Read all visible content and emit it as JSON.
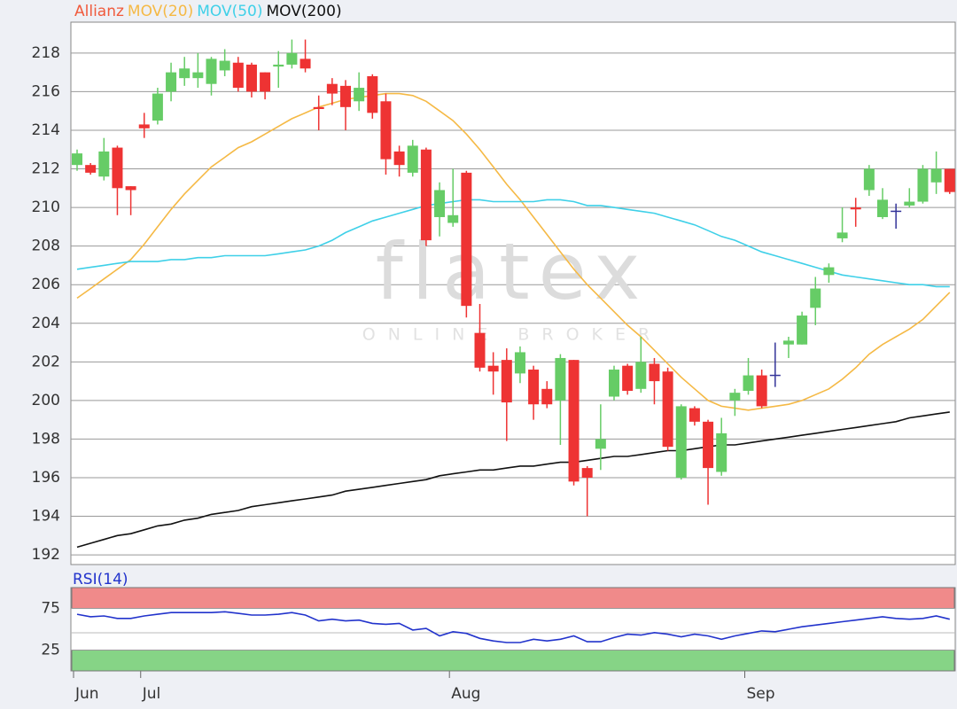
{
  "chart_data": [
    {
      "type": "candlestick",
      "watermark": "flatex",
      "watermark_sub": "ONLINE BROKER",
      "categories": [
        "Jun",
        null,
        null,
        null,
        null,
        "Jul",
        null,
        null,
        null,
        null,
        null,
        null,
        null,
        null,
        null,
        null,
        null,
        null,
        null,
        null,
        null,
        null,
        null,
        null,
        null,
        null,
        null,
        null,
        "Aug",
        null,
        null,
        null,
        null,
        null,
        null,
        null,
        null,
        null,
        null,
        null,
        null,
        null,
        null,
        null,
        null,
        null,
        null,
        null,
        null,
        null,
        "Sep",
        null,
        null,
        null,
        null,
        null,
        null,
        null,
        null,
        null,
        null,
        null,
        null,
        null,
        null,
        null
      ],
      "up_color": "#66cc66",
      "down_color": "#ee3333",
      "neutral_color": "#333399",
      "series": [
        {
          "name": "Allianz",
          "color": "#f05a3c",
          "open": [
            212.2,
            212.2,
            211.6,
            213.1,
            211.1,
            214.3,
            214.5,
            216.0,
            216.7,
            216.7,
            216.4,
            217.1,
            217.5,
            217.4,
            217.0,
            217.3,
            217.4,
            217.7,
            215.2,
            216.4,
            216.3,
            215.5,
            216.8,
            215.5,
            212.9,
            211.8,
            213.0,
            209.5,
            209.2,
            211.8,
            203.5,
            201.8,
            202.1,
            201.4,
            201.6,
            200.6,
            200.0,
            202.1,
            196.5,
            197.5,
            200.2,
            201.8,
            200.6,
            201.9,
            201.5,
            196.0,
            199.6,
            198.9,
            196.3,
            200.0,
            200.5,
            201.3,
            201.3,
            202.9,
            202.9,
            204.8,
            206.5,
            208.4,
            210.0,
            210.9,
            209.5,
            209.8,
            210.1,
            210.3,
            211.3,
            212.0
          ],
          "high": [
            213.0,
            212.3,
            213.6,
            213.2,
            211.1,
            214.9,
            216.2,
            217.5,
            217.8,
            218.0,
            217.8,
            218.2,
            217.8,
            217.5,
            217.0,
            218.1,
            218.7,
            218.7,
            215.8,
            216.7,
            216.6,
            217.0,
            216.9,
            215.9,
            213.2,
            213.5,
            213.1,
            211.3,
            212.0,
            211.9,
            205.0,
            202.5,
            202.7,
            202.8,
            201.8,
            201.0,
            202.4,
            202.1,
            196.6,
            199.8,
            201.8,
            201.9,
            203.3,
            202.2,
            201.7,
            199.8,
            199.7,
            199.0,
            199.1,
            200.6,
            202.2,
            201.6,
            203.0,
            203.3,
            204.6,
            206.4,
            207.1,
            210.0,
            210.5,
            212.2,
            211.0,
            210.2,
            211.0,
            212.2,
            212.9,
            212.0
          ],
          "low": [
            211.9,
            211.7,
            211.4,
            209.6,
            209.6,
            213.6,
            214.3,
            215.5,
            216.3,
            216.2,
            215.8,
            216.8,
            216.0,
            215.7,
            215.6,
            216.2,
            217.2,
            217.0,
            214.0,
            215.3,
            214.0,
            215.0,
            214.6,
            211.7,
            211.6,
            211.6,
            208.0,
            208.5,
            209.0,
            204.3,
            201.5,
            200.3,
            197.9,
            200.9,
            199.0,
            199.6,
            197.7,
            195.6,
            194.0,
            196.4,
            200.0,
            200.3,
            200.4,
            199.8,
            197.4,
            195.9,
            198.7,
            194.6,
            196.1,
            199.2,
            200.3,
            199.6,
            200.7,
            202.2,
            202.9,
            203.9,
            206.1,
            208.2,
            209.0,
            210.6,
            209.4,
            208.9,
            210.0,
            210.2,
            210.7,
            210.7
          ],
          "close": [
            212.8,
            211.8,
            212.9,
            211.0,
            210.9,
            214.1,
            215.9,
            217.0,
            217.2,
            217.0,
            217.7,
            217.6,
            216.2,
            216.0,
            216.0,
            217.4,
            218.0,
            217.2,
            215.1,
            215.9,
            215.2,
            216.2,
            214.9,
            212.5,
            212.2,
            213.2,
            208.3,
            210.9,
            209.6,
            204.9,
            201.7,
            201.5,
            199.9,
            202.5,
            199.8,
            199.8,
            202.2,
            195.8,
            196.0,
            198.0,
            201.6,
            200.5,
            202.0,
            201.0,
            197.6,
            199.7,
            198.9,
            196.5,
            198.3,
            200.4,
            201.3,
            199.7,
            201.3,
            203.1,
            204.4,
            205.8,
            206.9,
            208.7,
            209.9,
            212.0,
            210.4,
            209.8,
            210.3,
            212.0,
            212.0,
            210.8
          ]
        },
        {
          "name": "MOV(20)",
          "color": "#f5b945",
          "values": [
            205.3,
            205.8,
            206.3,
            206.8,
            207.3,
            208.1,
            209.0,
            209.9,
            210.7,
            211.4,
            212.1,
            212.6,
            213.1,
            213.4,
            213.8,
            214.2,
            214.6,
            214.9,
            215.2,
            215.4,
            215.6,
            215.7,
            215.8,
            215.9,
            215.9,
            215.8,
            215.5,
            215.0,
            214.5,
            213.8,
            213.0,
            212.1,
            211.2,
            210.4,
            209.5,
            208.6,
            207.7,
            206.8,
            206.0,
            205.3,
            204.6,
            203.9,
            203.3,
            202.6,
            201.9,
            201.2,
            200.6,
            200.0,
            199.7,
            199.6,
            199.5,
            199.6,
            199.7,
            199.8,
            200.0,
            200.3,
            200.6,
            201.1,
            201.7,
            202.4,
            202.9,
            203.3,
            203.7,
            204.2,
            204.9,
            205.6
          ]
        },
        {
          "name": "MOV(50)",
          "color": "#3fd0e8",
          "values": [
            206.8,
            206.9,
            207.0,
            207.1,
            207.2,
            207.2,
            207.2,
            207.3,
            207.3,
            207.4,
            207.4,
            207.5,
            207.5,
            207.5,
            207.5,
            207.6,
            207.7,
            207.8,
            208.0,
            208.3,
            208.7,
            209.0,
            209.3,
            209.5,
            209.7,
            209.9,
            210.1,
            210.2,
            210.3,
            210.4,
            210.4,
            210.3,
            210.3,
            210.3,
            210.3,
            210.4,
            210.4,
            210.3,
            210.1,
            210.1,
            210.0,
            209.9,
            209.8,
            209.7,
            209.5,
            209.3,
            209.1,
            208.8,
            208.5,
            208.3,
            208.0,
            207.7,
            207.5,
            207.3,
            207.1,
            206.9,
            206.7,
            206.5,
            206.4,
            206.3,
            206.2,
            206.1,
            206.0,
            206.0,
            205.9,
            205.9
          ]
        },
        {
          "name": "MOV(200)",
          "color": "#111111",
          "values": [
            192.4,
            192.6,
            192.8,
            193.0,
            193.1,
            193.3,
            193.5,
            193.6,
            193.8,
            193.9,
            194.1,
            194.2,
            194.3,
            194.5,
            194.6,
            194.7,
            194.8,
            194.9,
            195.0,
            195.1,
            195.3,
            195.4,
            195.5,
            195.6,
            195.7,
            195.8,
            195.9,
            196.1,
            196.2,
            196.3,
            196.4,
            196.4,
            196.5,
            196.6,
            196.6,
            196.7,
            196.8,
            196.8,
            196.9,
            197.0,
            197.1,
            197.1,
            197.2,
            197.3,
            197.4,
            197.4,
            197.5,
            197.6,
            197.7,
            197.7,
            197.8,
            197.9,
            198.0,
            198.1,
            198.2,
            198.3,
            198.4,
            198.5,
            198.6,
            198.7,
            198.8,
            198.9,
            199.1,
            199.2,
            199.3,
            199.4
          ]
        }
      ],
      "ylim": [
        191.5,
        219.6
      ],
      "yticks": [
        192,
        194,
        196,
        198,
        200,
        202,
        204,
        206,
        208,
        210,
        212,
        214,
        216,
        218
      ],
      "grid": true
    },
    {
      "type": "line",
      "title": "RSI(14)",
      "series": [
        {
          "name": "RSI(14)",
          "color": "#2233cc",
          "values": [
            68,
            65,
            66,
            63,
            63,
            66,
            68,
            70,
            70,
            70,
            70,
            71,
            69,
            67,
            67,
            68,
            70,
            67,
            60,
            62,
            60,
            61,
            57,
            56,
            57,
            49,
            51,
            42,
            47,
            45,
            39,
            36,
            34,
            34,
            38,
            36,
            38,
            42,
            35,
            35,
            40,
            44,
            43,
            46,
            44,
            41,
            44,
            42,
            38,
            42,
            45,
            48,
            47,
            50,
            53,
            55,
            57,
            59,
            61,
            63,
            65,
            63,
            62,
            63,
            66,
            62
          ]
        }
      ],
      "zones": [
        {
          "from": 75,
          "to": 100,
          "color": "#f08a8a"
        },
        {
          "from": 0,
          "to": 25,
          "color": "#86d486"
        }
      ],
      "ylim": [
        0,
        100
      ],
      "yticks": [
        25,
        75
      ],
      "grid": true
    }
  ]
}
